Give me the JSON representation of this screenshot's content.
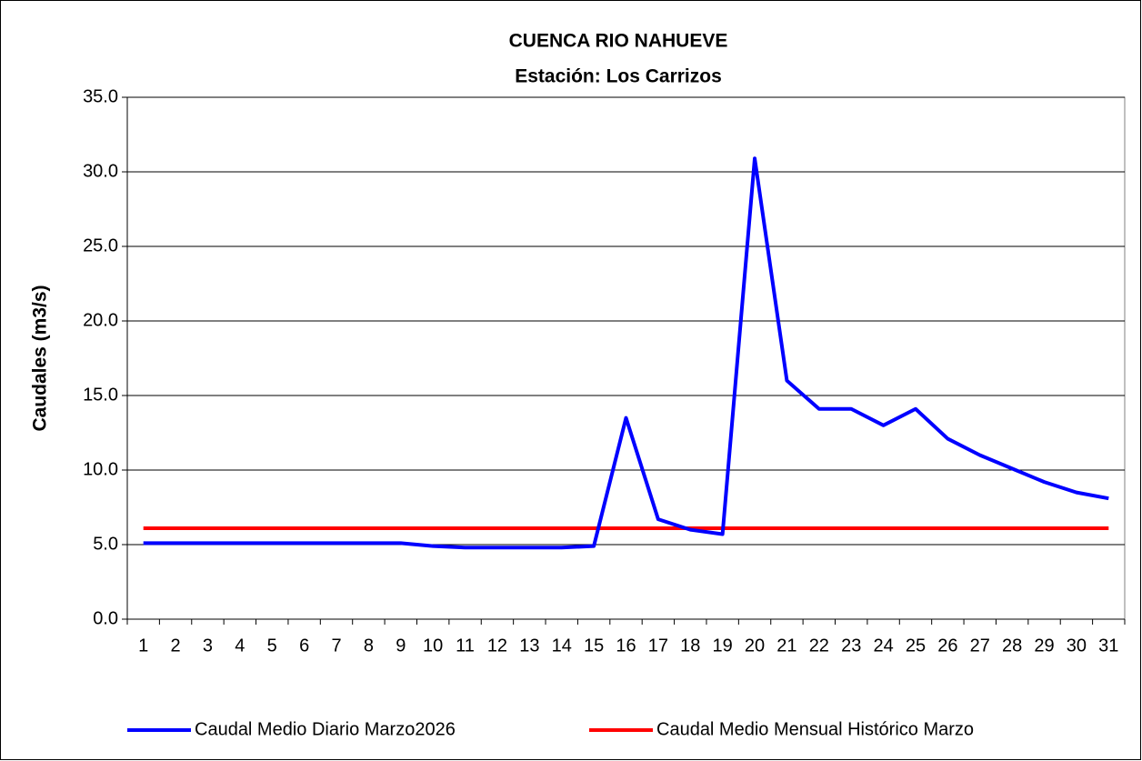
{
  "chart_data": {
    "type": "line",
    "title": [
      "CUENCA RIO NAHUEVE",
      "Estación: Los Carrizos"
    ],
    "y_label": "Caudales (m3/s)",
    "categories": [
      "1",
      "2",
      "3",
      "4",
      "5",
      "6",
      "7",
      "8",
      "9",
      "10",
      "11",
      "12",
      "13",
      "14",
      "15",
      "16",
      "17",
      "18",
      "19",
      "20",
      "21",
      "22",
      "23",
      "24",
      "25",
      "26",
      "27",
      "28",
      "29",
      "30",
      "31"
    ],
    "series": [
      {
        "name": "Caudal Medio Diario Marzo2026",
        "color": "#0000ff",
        "values": [
          5.1,
          5.1,
          5.1,
          5.1,
          5.1,
          5.1,
          5.1,
          5.1,
          5.1,
          4.9,
          4.8,
          4.8,
          4.8,
          4.8,
          4.9,
          13.5,
          6.7,
          6.0,
          5.7,
          30.9,
          16.0,
          14.1,
          14.1,
          13.0,
          14.1,
          12.1,
          11.0,
          10.1,
          9.2,
          8.5,
          8.1
        ]
      },
      {
        "name": "Caudal Medio Mensual Histórico Marzo",
        "color": "#ff0000",
        "values": [
          6.1,
          6.1,
          6.1,
          6.1,
          6.1,
          6.1,
          6.1,
          6.1,
          6.1,
          6.1,
          6.1,
          6.1,
          6.1,
          6.1,
          6.1,
          6.1,
          6.1,
          6.1,
          6.1,
          6.1,
          6.1,
          6.1,
          6.1,
          6.1,
          6.1,
          6.1,
          6.1,
          6.1,
          6.1,
          6.1,
          6.1
        ]
      }
    ],
    "ylim": [
      0,
      35
    ],
    "yticks": [
      {
        "value": 0,
        "label": "0.0"
      },
      {
        "value": 5,
        "label": "5.0"
      },
      {
        "value": 10,
        "label": "10.0"
      },
      {
        "value": 15,
        "label": "15.0"
      },
      {
        "value": 20,
        "label": "20.0"
      },
      {
        "value": 25,
        "label": "25.0"
      },
      {
        "value": 30,
        "label": "30.0"
      },
      {
        "value": 35,
        "label": "35.0"
      }
    ],
    "grid": true,
    "legend": "bottom"
  }
}
